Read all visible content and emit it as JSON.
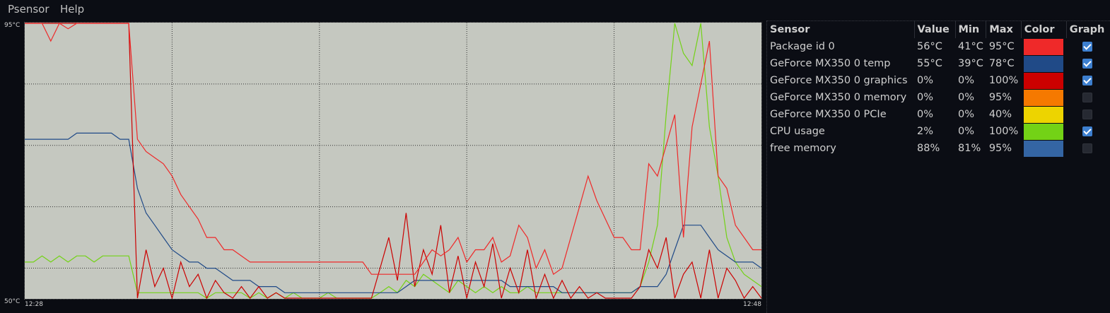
{
  "menu": {
    "items": [
      "Psensor",
      "Help"
    ]
  },
  "graph": {
    "y_max_label": "95°C",
    "y_min_label": "50°C",
    "x_start_label": "12:28",
    "x_end_label": "12:48"
  },
  "table": {
    "headers": {
      "sensor": "Sensor",
      "value": "Value",
      "min": "Min",
      "max": "Max",
      "color": "Color",
      "graph": "Graph"
    },
    "rows": [
      {
        "name": "Package id 0",
        "value": "56°C",
        "min": "41°C",
        "max": "95°C",
        "color": "#ef2929",
        "graph": true
      },
      {
        "name": "GeForce MX350 0 temp",
        "value": "55°C",
        "min": "39°C",
        "max": "78°C",
        "color": "#204a87",
        "graph": true
      },
      {
        "name": "GeForce MX350 0 graphics",
        "value": "0%",
        "min": "0%",
        "max": "100%",
        "color": "#cc0000",
        "graph": true
      },
      {
        "name": "GeForce MX350 0 memory",
        "value": "0%",
        "min": "0%",
        "max": "95%",
        "color": "#f57900",
        "graph": false
      },
      {
        "name": "GeForce MX350 0 PCIe",
        "value": "0%",
        "min": "0%",
        "max": "40%",
        "color": "#edd400",
        "graph": false
      },
      {
        "name": "CPU usage",
        "value": "2%",
        "min": "0%",
        "max": "100%",
        "color": "#73d216",
        "graph": true
      },
      {
        "name": "free memory",
        "value": "88%",
        "min": "81%",
        "max": "95%",
        "color": "#3465a4",
        "graph": false
      }
    ]
  },
  "chart_data": {
    "type": "line",
    "x_range": [
      "12:28",
      "12:48"
    ],
    "ylim_temp_c": [
      50,
      95
    ],
    "grid": true,
    "series": [
      {
        "name": "Package id 0",
        "color": "#ef2929",
        "values": [
          95,
          95,
          95,
          92,
          95,
          94,
          95,
          95,
          95,
          95,
          95,
          95,
          95,
          76,
          74,
          73,
          72,
          70,
          67,
          65,
          63,
          60,
          60,
          58,
          58,
          57,
          56,
          56,
          56,
          56,
          56,
          56,
          56,
          56,
          56,
          56,
          56,
          56,
          56,
          56,
          54,
          54,
          54,
          54,
          54,
          54,
          56,
          58,
          57,
          58,
          60,
          56,
          58,
          58,
          60,
          56,
          57,
          62,
          60,
          55,
          58,
          54,
          55,
          60,
          65,
          70,
          66,
          63,
          60,
          60,
          58,
          58,
          72,
          70,
          75,
          80,
          60,
          78,
          85,
          92,
          70,
          68,
          62,
          60,
          58,
          58
        ]
      },
      {
        "name": "GeForce MX350 0 temp",
        "color": "#204a87",
        "values": [
          76,
          76,
          76,
          76,
          76,
          76,
          77,
          77,
          77,
          77,
          77,
          76,
          76,
          68,
          64,
          62,
          60,
          58,
          57,
          56,
          56,
          55,
          55,
          54,
          53,
          53,
          53,
          52,
          52,
          52,
          51,
          51,
          51,
          51,
          51,
          51,
          51,
          51,
          51,
          51,
          51,
          51,
          51,
          51,
          52,
          53,
          53,
          53,
          53,
          53,
          53,
          53,
          53,
          53,
          53,
          53,
          52,
          52,
          52,
          52,
          52,
          52,
          51,
          51,
          51,
          51,
          51,
          51,
          51,
          51,
          51,
          52,
          52,
          52,
          54,
          58,
          62,
          62,
          62,
          60,
          58,
          57,
          56,
          56,
          56,
          55
        ]
      },
      {
        "name": "GeForce MX350 0 graphics",
        "color": "#cc0000",
        "values": [
          95,
          95,
          95,
          95,
          95,
          95,
          95,
          95,
          95,
          95,
          95,
          95,
          95,
          50,
          58,
          52,
          55,
          50,
          56,
          52,
          54,
          50,
          53,
          51,
          50,
          52,
          50,
          52,
          50,
          51,
          50,
          50,
          50,
          50,
          50,
          50,
          50,
          50,
          50,
          50,
          50,
          55,
          60,
          53,
          64,
          52,
          58,
          54,
          62,
          51,
          57,
          50,
          56,
          52,
          59,
          50,
          55,
          51,
          58,
          50,
          54,
          50,
          53,
          50,
          52,
          50,
          51,
          50,
          50,
          50,
          50,
          52,
          58,
          55,
          60,
          50,
          54,
          56,
          50,
          58,
          50,
          55,
          53,
          50,
          52,
          50
        ]
      },
      {
        "name": "CPU usage",
        "color": "#73d216",
        "values": [
          56,
          56,
          57,
          56,
          57,
          56,
          57,
          57,
          56,
          57,
          57,
          57,
          57,
          51,
          51,
          51,
          51,
          51,
          51,
          51,
          51,
          50,
          51,
          51,
          51,
          51,
          50,
          51,
          50,
          51,
          50,
          51,
          50,
          50,
          50,
          51,
          50,
          50,
          50,
          50,
          50,
          51,
          52,
          51,
          53,
          52,
          54,
          53,
          52,
          51,
          53,
          52,
          51,
          52,
          51,
          52,
          51,
          51,
          52,
          51,
          51,
          51,
          51,
          51,
          51,
          51,
          51,
          51,
          51,
          51,
          51,
          52,
          56,
          62,
          80,
          95,
          90,
          88,
          95,
          78,
          70,
          60,
          56,
          54,
          53,
          52
        ]
      }
    ]
  }
}
